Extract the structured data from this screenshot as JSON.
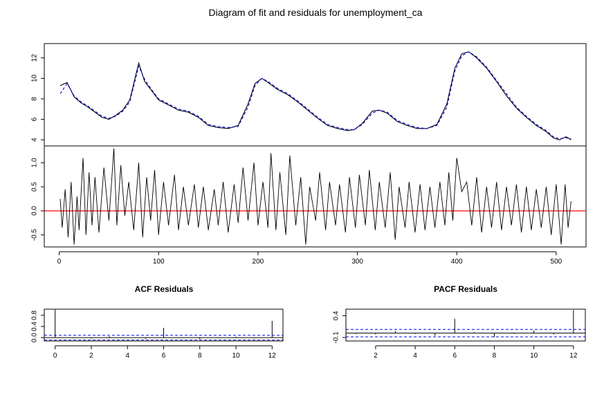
{
  "title": "Diagram of fit and residuals for unemployment_ca",
  "colors": {
    "actual": "#000000",
    "fitted": "#0000ff",
    "zero_line": "#ff0000",
    "conf_band": "#0000ff",
    "axis": "#000000"
  },
  "chart_data": [
    {
      "id": "fit",
      "type": "line",
      "title": "",
      "xlabel": "",
      "ylabel": "",
      "xlim": [
        -15,
        530
      ],
      "ylim": [
        3.4,
        13.4
      ],
      "y_ticks": [
        4,
        6,
        8,
        10,
        12
      ],
      "y_tick_labels": [
        "4",
        "6",
        "8",
        "10",
        "12"
      ],
      "grid": false,
      "legend": "none",
      "series": [
        {
          "role": "actual",
          "style": "solid",
          "x": [
            1,
            8,
            15,
            22,
            29,
            36,
            43,
            50,
            57,
            64,
            71,
            80,
            86,
            93,
            100,
            110,
            120,
            130,
            140,
            150,
            160,
            170,
            180,
            190,
            197,
            204,
            210,
            220,
            230,
            240,
            250,
            260,
            270,
            280,
            290,
            297,
            305,
            315,
            322,
            330,
            340,
            350,
            360,
            370,
            380,
            390,
            398,
            405,
            412,
            420,
            430,
            440,
            450,
            460,
            470,
            480,
            490,
            497,
            503,
            510,
            515
          ],
          "y": [
            9.3,
            9.6,
            8.2,
            7.6,
            7.2,
            6.7,
            6.2,
            6.0,
            6.4,
            6.9,
            7.9,
            11.5,
            9.7,
            8.8,
            7.9,
            7.4,
            6.9,
            6.7,
            6.2,
            5.4,
            5.2,
            5.1,
            5.4,
            7.5,
            9.5,
            10.0,
            9.6,
            8.9,
            8.4,
            7.7,
            6.9,
            6.1,
            5.4,
            5.1,
            4.9,
            5.0,
            5.6,
            6.8,
            6.9,
            6.6,
            5.8,
            5.4,
            5.1,
            5.1,
            5.5,
            7.5,
            11.0,
            12.4,
            12.6,
            12.0,
            11.0,
            9.7,
            8.3,
            7.1,
            6.2,
            5.4,
            4.8,
            4.2,
            4.0,
            4.3,
            4.0
          ]
        },
        {
          "role": "fitted",
          "style": "dashed",
          "x": [
            1,
            8,
            15,
            22,
            29,
            36,
            43,
            50,
            57,
            64,
            71,
            80,
            86,
            93,
            100,
            110,
            120,
            130,
            140,
            150,
            160,
            170,
            180,
            190,
            197,
            204,
            210,
            220,
            230,
            240,
            250,
            260,
            270,
            280,
            290,
            297,
            305,
            315,
            322,
            330,
            340,
            350,
            360,
            370,
            380,
            390,
            398,
            405,
            412,
            420,
            430,
            440,
            450,
            460,
            470,
            480,
            490,
            497,
            503,
            510,
            515
          ],
          "y": [
            8.5,
            9.5,
            8.3,
            7.7,
            7.3,
            6.8,
            6.3,
            6.1,
            6.3,
            6.8,
            7.7,
            11.2,
            9.9,
            8.9,
            8.0,
            7.5,
            7.0,
            6.8,
            6.3,
            5.5,
            5.3,
            5.2,
            5.3,
            7.2,
            9.3,
            10.0,
            9.7,
            9.0,
            8.5,
            7.8,
            7.0,
            6.2,
            5.5,
            5.2,
            5.0,
            5.0,
            5.5,
            6.6,
            6.9,
            6.7,
            5.9,
            5.5,
            5.2,
            5.1,
            5.4,
            7.2,
            10.7,
            12.2,
            12.6,
            12.1,
            11.1,
            9.8,
            8.5,
            7.2,
            6.3,
            5.5,
            4.9,
            4.3,
            4.1,
            4.2,
            4.1
          ]
        }
      ]
    },
    {
      "id": "residuals",
      "type": "line",
      "title": "",
      "xlabel": "",
      "ylabel": "",
      "xlim": [
        -15,
        530
      ],
      "ylim": [
        -0.75,
        1.35
      ],
      "x_ticks": [
        0,
        100,
        200,
        300,
        400,
        500
      ],
      "x_tick_labels": [
        "0",
        "100",
        "200",
        "300",
        "400",
        "500"
      ],
      "y_ticks": [
        -0.5,
        0.0,
        0.5,
        1.0
      ],
      "y_tick_labels": [
        "-0.5",
        "0.0",
        "0.5",
        "1.0"
      ],
      "reference_line": 0,
      "grid": false,
      "legend": "none",
      "series": [
        {
          "role": "residuals",
          "x": [
            1,
            3,
            6,
            9,
            12,
            15,
            18,
            20,
            24,
            27,
            30,
            33,
            36,
            40,
            45,
            50,
            55,
            58,
            62,
            66,
            70,
            75,
            80,
            84,
            88,
            92,
            96,
            100,
            105,
            110,
            116,
            120,
            125,
            130,
            136,
            140,
            145,
            150,
            156,
            160,
            165,
            170,
            176,
            180,
            185,
            190,
            196,
            200,
            205,
            210,
            213,
            218,
            222,
            228,
            232,
            238,
            243,
            248,
            252,
            258,
            262,
            268,
            272,
            278,
            282,
            288,
            292,
            298,
            302,
            308,
            312,
            318,
            322,
            328,
            333,
            338,
            342,
            348,
            352,
            358,
            363,
            368,
            373,
            378,
            383,
            388,
            392,
            396,
            400,
            405,
            410,
            415,
            420,
            425,
            430,
            435,
            440,
            445,
            450,
            455,
            460,
            465,
            470,
            475,
            480,
            485,
            490,
            495,
            500,
            505,
            509,
            512,
            515
          ],
          "y": [
            0.25,
            -0.35,
            0.45,
            -0.55,
            0.6,
            -0.7,
            0.3,
            -0.4,
            1.1,
            -0.5,
            0.8,
            -0.3,
            0.7,
            -0.45,
            0.9,
            -0.2,
            1.3,
            -0.3,
            0.95,
            -0.1,
            0.6,
            -0.4,
            1.0,
            -0.55,
            0.7,
            -0.2,
            0.85,
            -0.5,
            0.6,
            -0.3,
            0.75,
            -0.4,
            0.5,
            -0.3,
            0.55,
            -0.35,
            0.5,
            -0.4,
            0.45,
            -0.3,
            0.6,
            -0.45,
            0.55,
            -0.25,
            0.9,
            -0.2,
            1.0,
            -0.3,
            0.6,
            -0.35,
            1.2,
            -0.4,
            0.8,
            -0.5,
            1.15,
            -0.3,
            0.7,
            -0.7,
            0.5,
            -0.2,
            0.8,
            -0.4,
            0.6,
            -0.3,
            0.55,
            -0.45,
            0.7,
            -0.35,
            0.75,
            -0.3,
            0.85,
            -0.4,
            0.6,
            -0.35,
            0.8,
            -0.6,
            0.5,
            -0.35,
            0.6,
            -0.45,
            0.55,
            -0.4,
            0.5,
            -0.35,
            0.6,
            -0.3,
            0.8,
            -0.2,
            1.1,
            0.4,
            0.6,
            -0.3,
            0.7,
            -0.45,
            0.5,
            -0.35,
            0.6,
            -0.4,
            0.5,
            -0.3,
            0.55,
            -0.45,
            0.5,
            -0.4,
            0.45,
            -0.35,
            0.5,
            -0.5,
            0.55,
            -0.7,
            0.55,
            -0.35,
            0.2
          ]
        }
      ]
    },
    {
      "id": "acf",
      "type": "bar",
      "title": "ACF Residuals",
      "xlabel": "",
      "ylabel": "",
      "xlim": [
        -0.6,
        12.6
      ],
      "ylim": [
        -0.12,
        1.02
      ],
      "x_ticks": [
        0,
        2,
        4,
        6,
        8,
        10,
        12
      ],
      "x_tick_labels": [
        "0",
        "2",
        "4",
        "6",
        "8",
        "10",
        "12"
      ],
      "y_ticks": [
        0.0,
        0.4,
        0.8
      ],
      "y_tick_labels": [
        "0.0",
        "0.4",
        "0.8"
      ],
      "conf_band": [
        -0.085,
        0.085
      ],
      "grid": false,
      "legend": "none",
      "lags": [
        0,
        1,
        2,
        3,
        4,
        5,
        6,
        7,
        8,
        9,
        10,
        11,
        12
      ],
      "values": [
        1.0,
        -0.02,
        -0.03,
        0.05,
        -0.01,
        -0.05,
        0.35,
        0.01,
        -0.06,
        -0.02,
        0.03,
        -0.03,
        0.6
      ]
    },
    {
      "id": "pacf",
      "type": "bar",
      "title": "PACF Residuals",
      "xlabel": "",
      "ylabel": "",
      "xlim": [
        0.5,
        12.6
      ],
      "ylim": [
        -0.18,
        0.55
      ],
      "x_ticks": [
        2,
        4,
        6,
        8,
        10,
        12
      ],
      "x_tick_labels": [
        "2",
        "4",
        "6",
        "8",
        "10",
        "12"
      ],
      "y_ticks": [
        -0.1,
        0.4
      ],
      "y_tick_labels": [
        "-0.1",
        "0.4"
      ],
      "conf_band": [
        -0.085,
        0.085
      ],
      "grid": false,
      "legend": "none",
      "lags": [
        1,
        2,
        3,
        4,
        5,
        6,
        7,
        8,
        9,
        10,
        11,
        12
      ],
      "values": [
        -0.02,
        -0.03,
        0.05,
        -0.02,
        -0.06,
        0.33,
        0.02,
        -0.09,
        -0.02,
        0.06,
        -0.03,
        0.53
      ]
    }
  ]
}
